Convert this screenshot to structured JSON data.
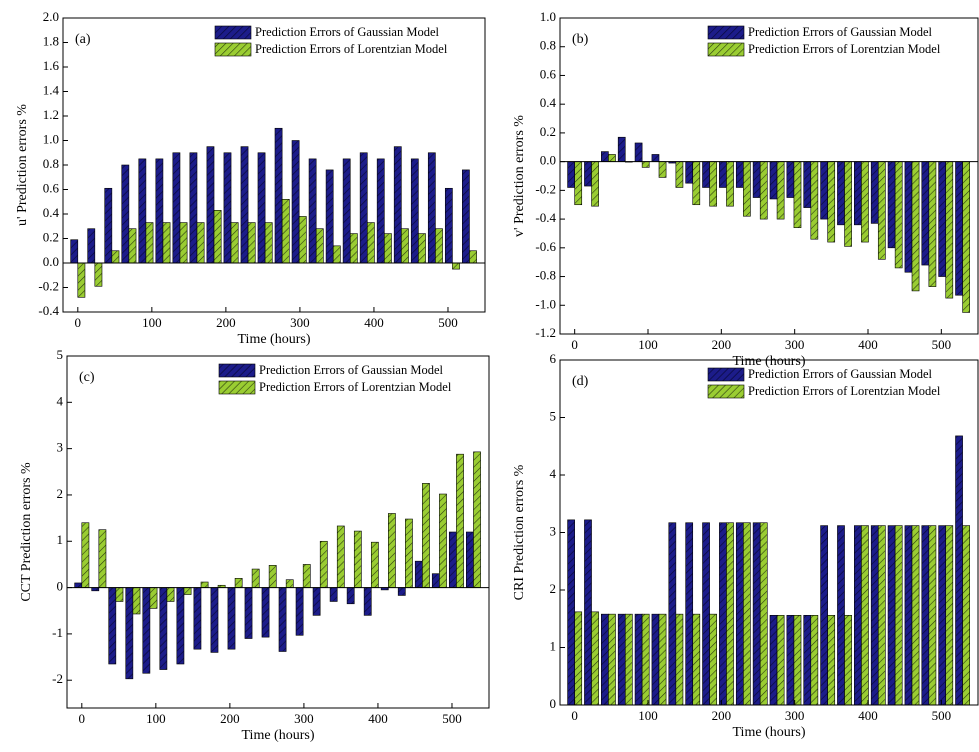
{
  "chart_data": [
    {
      "type": "bar",
      "annotation": "(a)",
      "xlabel": "Time (hours)",
      "ylabel": "u' Prediction errors %",
      "x": [
        0,
        23,
        46,
        69,
        92,
        115,
        138,
        161,
        184,
        207,
        230,
        253,
        276,
        299,
        322,
        345,
        368,
        391,
        414,
        437,
        460,
        483,
        506,
        529
      ],
      "series": [
        {
          "name": "Prediction Errors of Gaussian Model",
          "color": "#1c1c8a",
          "values": [
            0.19,
            0.28,
            0.61,
            0.8,
            0.85,
            0.85,
            0.9,
            0.9,
            0.95,
            0.9,
            0.95,
            0.9,
            1.1,
            1.0,
            0.85,
            0.76,
            0.85,
            0.9,
            0.85,
            0.95,
            0.85,
            0.9,
            0.61,
            0.76
          ]
        },
        {
          "name": "Prediction Errors of Lorentzian Model",
          "color": "#9acd32",
          "values": [
            -0.28,
            -0.19,
            0.1,
            0.28,
            0.33,
            0.33,
            0.33,
            0.33,
            0.43,
            0.33,
            0.33,
            0.33,
            0.52,
            0.38,
            0.28,
            0.14,
            0.24,
            0.33,
            0.24,
            0.28,
            0.24,
            0.28,
            -0.05,
            0.1
          ]
        }
      ],
      "xlim": [
        -20,
        550
      ],
      "xticks": [
        0,
        100,
        200,
        300,
        400,
        500
      ],
      "ylim": [
        -0.4,
        2.0
      ],
      "yticks": [
        -0.4,
        -0.2,
        {
          "value": 0,
          "label": "0.0"
        },
        0.2,
        0.4,
        0.6,
        0.8,
        {
          "value": 1,
          "label": "1.0"
        },
        1.2,
        1.4,
        1.6,
        1.8,
        {
          "value": 2,
          "label": "2.0"
        }
      ],
      "legend": "upper right"
    },
    {
      "type": "bar",
      "annotation": "(b)",
      "xlabel": "Time (hours)",
      "ylabel": "v' Prediction errors %",
      "x": [
        0,
        23,
        46,
        69,
        92,
        115,
        138,
        161,
        184,
        207,
        230,
        253,
        276,
        299,
        322,
        345,
        368,
        391,
        414,
        437,
        460,
        483,
        506,
        529
      ],
      "series": [
        {
          "name": "Prediction Errors of Gaussian Model",
          "color": "#1c1c8a",
          "values": [
            -0.18,
            -0.17,
            0.07,
            0.17,
            0.13,
            0.05,
            -0.01,
            -0.15,
            -0.18,
            -0.18,
            -0.18,
            -0.25,
            -0.26,
            -0.25,
            -0.32,
            -0.4,
            -0.44,
            -0.44,
            -0.43,
            -0.6,
            -0.77,
            -0.72,
            -0.8,
            -0.93
          ]
        },
        {
          "name": "Prediction Errors of Lorentzian Model",
          "color": "#9acd32",
          "values": [
            -0.3,
            -0.31,
            0.05,
            0.0,
            -0.04,
            -0.11,
            -0.18,
            -0.3,
            -0.31,
            -0.31,
            -0.38,
            -0.4,
            -0.4,
            -0.46,
            -0.54,
            -0.56,
            -0.59,
            -0.56,
            -0.68,
            -0.74,
            -0.9,
            -0.87,
            -0.95,
            -1.05
          ]
        }
      ],
      "xlim": [
        -20,
        550
      ],
      "xticks": [
        0,
        100,
        200,
        300,
        400,
        500
      ],
      "ylim": [
        -1.2,
        1.0
      ],
      "yticks": [
        -1.2,
        {
          "value": -1,
          "label": "-1.0"
        },
        -0.8,
        -0.6,
        -0.4,
        -0.2,
        {
          "value": 0,
          "label": "0.0"
        },
        0.2,
        0.4,
        0.6,
        0.8,
        {
          "value": 1,
          "label": "1.0"
        }
      ],
      "legend": "upper right"
    },
    {
      "type": "bar",
      "annotation": "(c)",
      "xlabel": "Time (hours)",
      "ylabel": "CCT Prediction errors %",
      "x": [
        0,
        23,
        46,
        69,
        92,
        115,
        138,
        161,
        184,
        207,
        230,
        253,
        276,
        299,
        322,
        345,
        368,
        391,
        414,
        437,
        460,
        483,
        506,
        529
      ],
      "series": [
        {
          "name": "Prediction Errors of Gaussian Model",
          "color": "#1c1c8a",
          "values": [
            0.1,
            -0.07,
            -1.65,
            -1.97,
            -1.85,
            -1.77,
            -1.65,
            -1.33,
            -1.4,
            -1.33,
            -1.1,
            -1.07,
            -1.38,
            -1.03,
            -0.6,
            -0.3,
            -0.35,
            -0.6,
            -0.05,
            -0.17,
            0.57,
            0.3,
            1.2,
            1.2
          ]
        },
        {
          "name": "Prediction Errors of Lorentzian Model",
          "color": "#9acd32",
          "values": [
            1.4,
            1.25,
            -0.3,
            -0.57,
            -0.45,
            -0.3,
            -0.15,
            0.12,
            0.05,
            0.2,
            0.4,
            0.48,
            0.17,
            0.5,
            1.0,
            1.33,
            1.22,
            0.98,
            1.6,
            1.48,
            2.25,
            2.02,
            2.88,
            2.93
          ]
        }
      ],
      "xlim": [
        -20,
        550
      ],
      "xticks": [
        0,
        100,
        200,
        300,
        400,
        500
      ],
      "ylim": [
        -2.6,
        5
      ],
      "yticks": [
        -2,
        -1,
        0,
        1,
        2,
        3,
        4,
        5
      ],
      "legend": "upper right"
    },
    {
      "type": "bar",
      "annotation": "(d)",
      "xlabel": "Time (hours)",
      "ylabel": "CRI Prediction errors %",
      "x": [
        0,
        23,
        46,
        69,
        92,
        115,
        138,
        161,
        184,
        207,
        230,
        253,
        276,
        299,
        322,
        345,
        368,
        391,
        414,
        437,
        460,
        483,
        506,
        529
      ],
      "series": [
        {
          "name": "Prediction Errors of Gaussian Model",
          "color": "#1c1c8a",
          "values": [
            3.22,
            3.22,
            1.58,
            1.58,
            1.58,
            1.58,
            3.17,
            3.17,
            3.17,
            3.17,
            3.17,
            3.17,
            1.56,
            1.56,
            1.56,
            3.12,
            3.12,
            3.12,
            3.12,
            3.12,
            3.12,
            3.12,
            3.12,
            4.68
          ]
        },
        {
          "name": "Prediction Errors of Lorentzian Model",
          "color": "#9acd32",
          "values": [
            1.62,
            1.62,
            1.58,
            1.58,
            1.58,
            1.58,
            1.58,
            1.58,
            1.58,
            3.17,
            3.17,
            3.17,
            1.56,
            1.56,
            1.56,
            1.56,
            1.56,
            3.12,
            3.12,
            3.12,
            3.12,
            3.12,
            3.12,
            3.12
          ]
        }
      ],
      "xlim": [
        -20,
        550
      ],
      "xticks": [
        0,
        100,
        200,
        300,
        400,
        500
      ],
      "ylim": [
        0,
        6
      ],
      "yticks": [
        0,
        1,
        2,
        3,
        4,
        5,
        6
      ],
      "legend": "upper right"
    }
  ]
}
